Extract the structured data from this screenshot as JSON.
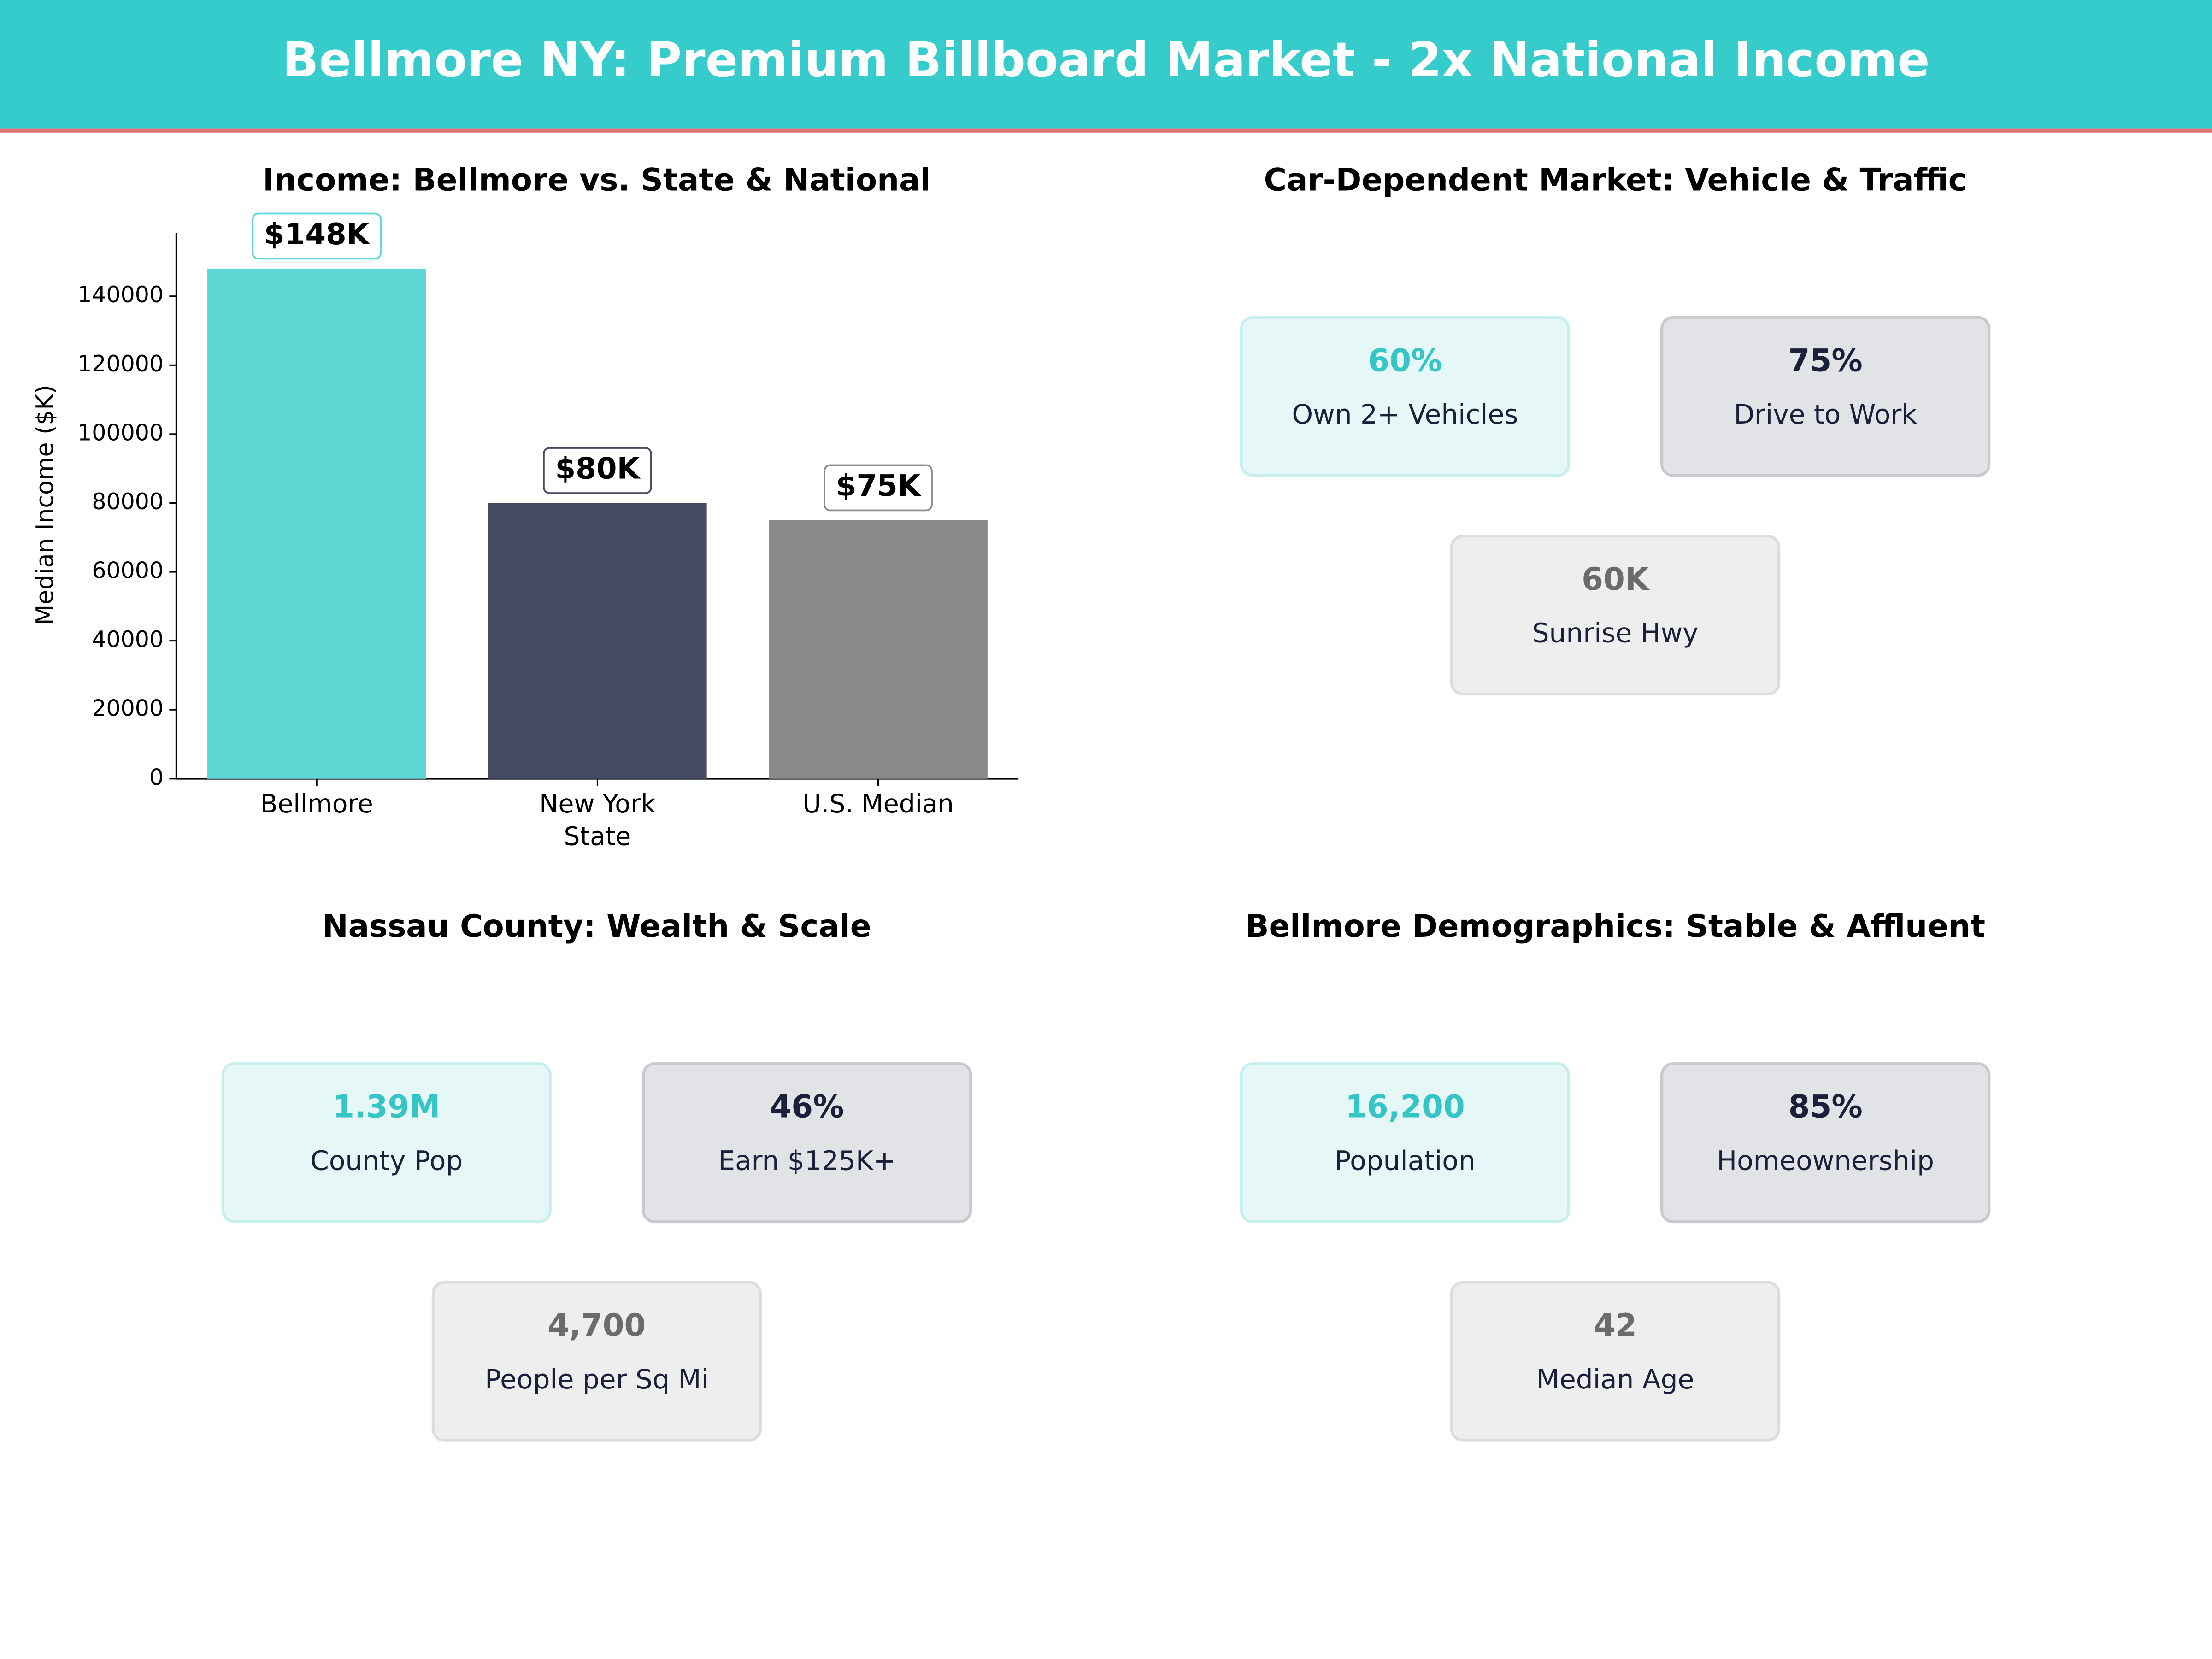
{
  "header": {
    "title": "Bellmore NY: Premium Billboard Market - 2x National Income"
  },
  "chart_data": {
    "type": "bar",
    "title": "Income: Bellmore vs. State & National",
    "y_label": "Median Income ($K)",
    "categories": [
      "Bellmore",
      "New York State",
      "U.S. Median"
    ],
    "values": [
      148000,
      80000,
      75000
    ],
    "value_labels": [
      "$148K",
      "$80K",
      "$75K"
    ],
    "colors": [
      "#5ed8d4",
      "#474b61",
      "#8a8a8a"
    ],
    "ylim": [
      0,
      158400
    ],
    "yticks": [
      0,
      20000,
      40000,
      60000,
      80000,
      100000,
      120000,
      140000
    ]
  },
  "panels": [
    {
      "title": "Car-Dependent Market: Vehicle & Traffic",
      "cards": [
        {
          "value": "60%",
          "label": "Own 2+ Vehicles"
        },
        {
          "value": "75%",
          "label": "Drive to Work"
        },
        {
          "value": "60K",
          "label": "Sunrise Hwy"
        }
      ]
    },
    {
      "title": "Nassau County: Wealth & Scale",
      "cards": [
        {
          "value": "1.39M",
          "label": "County Pop"
        },
        {
          "value": "46%",
          "label": "Earn $125K+"
        },
        {
          "value": "4,700",
          "label": "People per Sq Mi"
        }
      ]
    },
    {
      "title": "Bellmore Demographics: Stable & Affluent",
      "cards": [
        {
          "value": "16,200",
          "label": "Population"
        },
        {
          "value": "85%",
          "label": "Homeownership"
        },
        {
          "value": "42",
          "label": "Median Age"
        }
      ]
    }
  ]
}
